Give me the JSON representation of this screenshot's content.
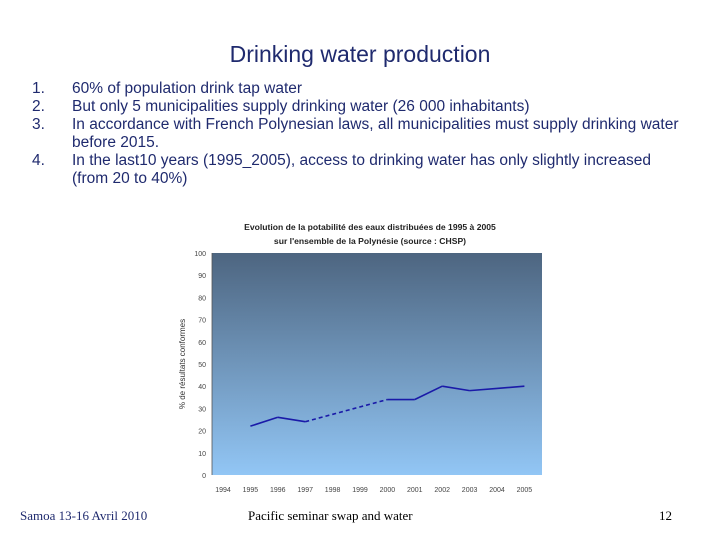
{
  "slide": {
    "title": "Drinking water production",
    "bullets": [
      {
        "num": "1.",
        "text": "60% of population drink tap water"
      },
      {
        "num": "2.",
        "text": "But only 5 municipalities supply drinking water (26 000 inhabitants)"
      },
      {
        "num": "3.",
        "text": "In accordance with French Polynesian laws, all municipalities must supply drinking water before 2015."
      },
      {
        "num": "4.",
        "text": "In the last10 years (1995_2005), access to drinking water has only slightly increased (from 20 to 40%)"
      }
    ]
  },
  "chart_data": {
    "type": "line",
    "title": "Evolution de la potabilité des eaux distribuées de 1995 à 2005",
    "subtitle": "sur l'ensemble de la Polynésie (source : CHSP)",
    "xlabel": "",
    "ylabel": "% de résultats conformes",
    "categories": [
      "1994",
      "1995",
      "1996",
      "1997",
      "1998",
      "1999",
      "2000",
      "2001",
      "2002",
      "2003",
      "2004",
      "2005"
    ],
    "yticks": [
      "0",
      "10",
      "20",
      "30",
      "40",
      "50",
      "60",
      "70",
      "80",
      "90",
      "100"
    ],
    "ylim": [
      0,
      100
    ],
    "grid": false,
    "series": [
      {
        "values": [
          null,
          22,
          26,
          24,
          null,
          null,
          34,
          34,
          40,
          38,
          39,
          40
        ]
      }
    ],
    "estimated_segments": [
      [
        "1997",
        "2000"
      ]
    ],
    "colors": {
      "line": "#1a1aa8",
      "bg_top": "#4d6580",
      "bg_bottom": "#92c6f5"
    }
  },
  "footer": {
    "left": "Samoa 13-16 Avril 2010",
    "center": "Pacific seminar swap and water",
    "page": "12"
  }
}
